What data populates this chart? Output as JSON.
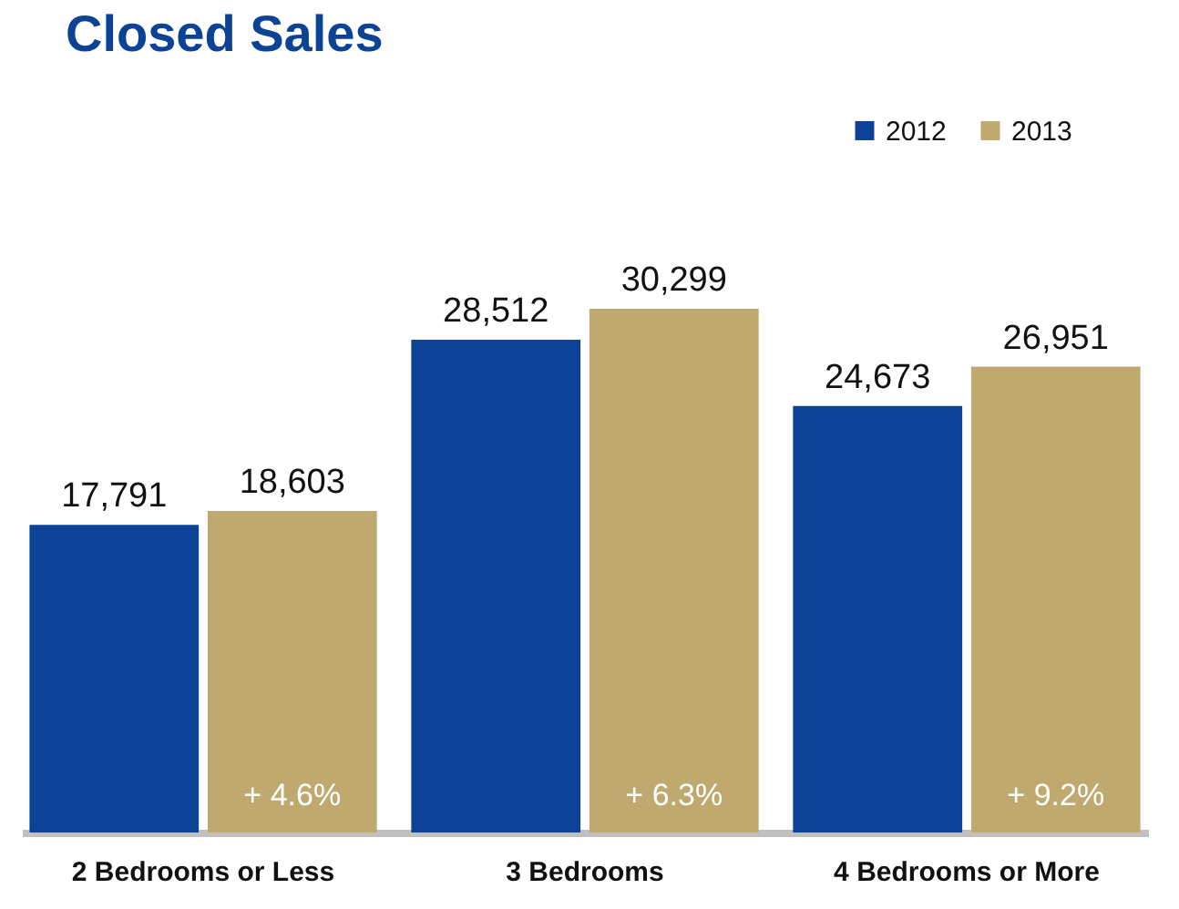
{
  "chart_data": {
    "type": "bar",
    "title": "Closed Sales",
    "categories": [
      "2 Bedrooms or Less",
      "3 Bedrooms",
      "4 Bedrooms or More"
    ],
    "series": [
      {
        "name": "2012",
        "color": "#0c4396",
        "values": [
          17791,
          28512,
          24673
        ],
        "value_labels": [
          "17,791",
          "28,512",
          "24,673"
        ]
      },
      {
        "name": "2013",
        "color": "#bfa96f",
        "values": [
          18603,
          30299,
          26951
        ],
        "value_labels": [
          "18,603",
          "30,299",
          "26,951"
        ]
      }
    ],
    "legend": "top right",
    "grid": false,
    "annotations": [
      {
        "text": "+ 4.6%",
        "x": "2 Bedrooms or Less"
      },
      {
        "text": "+ 6.3%",
        "x": "3 Bedrooms"
      },
      {
        "text": "+ 9.2%",
        "x": "4 Bedrooms or More"
      }
    ]
  }
}
